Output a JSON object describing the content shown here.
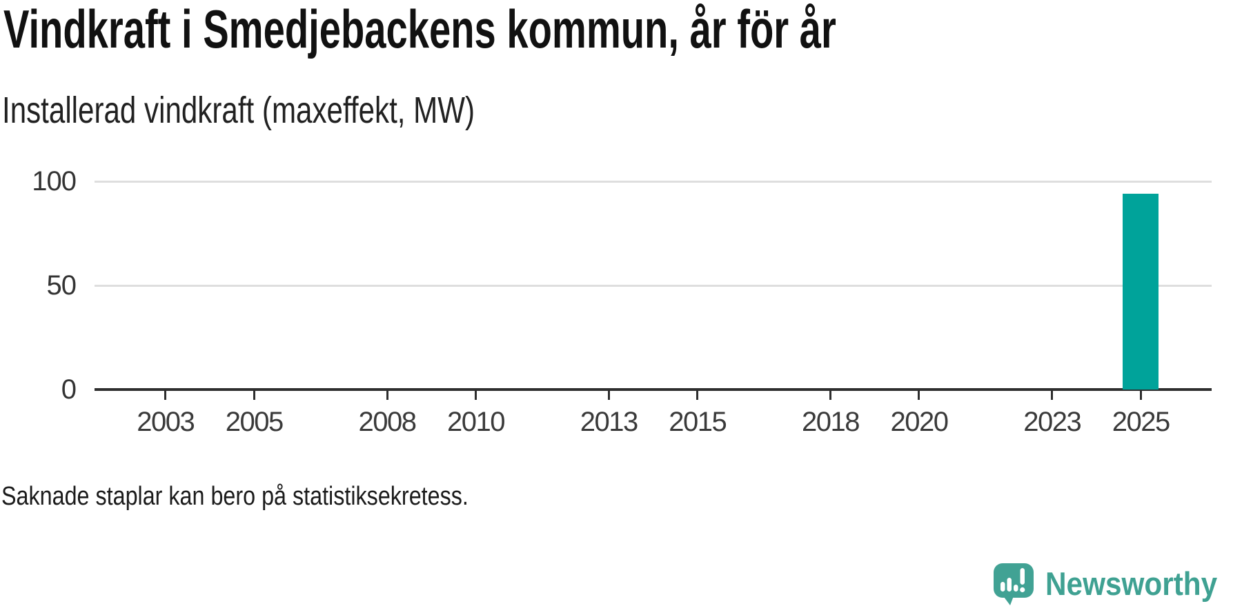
{
  "header": {
    "title": "Vindkraft i Smedjebackens kommun, år för år",
    "subtitle": "Installerad vindkraft (maxeffekt, MW)"
  },
  "footer": {
    "note": "Saknade staplar kan bero på statistiksekretess.",
    "brand": "Newsworthy"
  },
  "colors": {
    "bar": "#00a39a",
    "logo_teal": "#3fa192",
    "gridline": "#dedede",
    "axis": "#2e2e2e"
  },
  "chart_data": {
    "type": "bar",
    "title": "Vindkraft i Smedjebackens kommun, år för år",
    "subtitle": "Installerad vindkraft (maxeffekt, MW)",
    "xlabel": "",
    "ylabel": "Installerad vindkraft (maxeffekt, MW)",
    "x_tick_labels": [
      2003,
      2005,
      2008,
      2010,
      2013,
      2015,
      2018,
      2020,
      2023,
      2025
    ],
    "y_ticks": [
      0,
      50,
      100
    ],
    "xlim": [
      2001.4,
      2026.6
    ],
    "ylim": [
      0,
      100
    ],
    "grid": "horizontal",
    "legend": "none",
    "bar_color": "#00a39a",
    "bars": [
      {
        "x": 2025,
        "value": 94
      }
    ],
    "note": "Saknade staplar kan bero på statistiksekretess."
  }
}
